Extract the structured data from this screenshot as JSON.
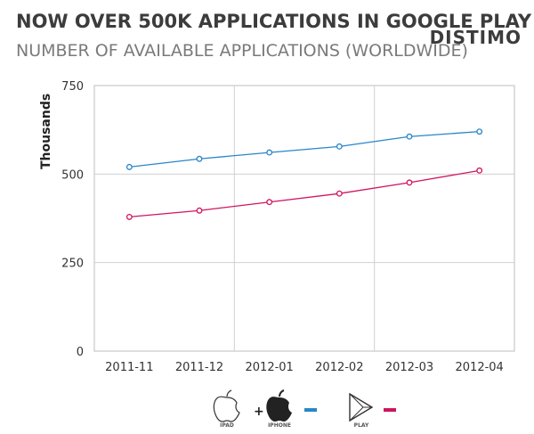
{
  "header": {
    "title": "NOW OVER 500K APPLICATIONS IN GOOGLE PLAY",
    "subtitle": "NUMBER OF AVAILABLE APPLICATIONS (WORLDWIDE)",
    "brand": "DISTIMO"
  },
  "chart_data": {
    "type": "line",
    "title": "NOW OVER 500K APPLICATIONS IN GOOGLE PLAY",
    "subtitle": "NUMBER OF AVAILABLE APPLICATIONS (WORLDWIDE)",
    "xlabel": "",
    "ylabel": "Thousands",
    "categories": [
      "2011-11",
      "2011-12",
      "2012-01",
      "2012-02",
      "2012-03",
      "2012-04"
    ],
    "ylim": [
      0,
      750
    ],
    "yticks": [
      "0",
      "250",
      "500",
      "750"
    ],
    "grid": true,
    "series": [
      {
        "name": "iPad + iPhone",
        "color": "#2a86c8",
        "values": [
          520,
          543,
          561,
          578,
          606,
          620
        ]
      },
      {
        "name": "Play",
        "color": "#d0155e",
        "values": [
          379,
          397,
          421,
          445,
          476,
          510
        ]
      }
    ]
  },
  "legend": {
    "items": [
      {
        "label": "IPAD",
        "icon": "apple-outline-icon"
      },
      {
        "label": "IPHONE",
        "icon": "apple-filled-icon"
      },
      {
        "label": "PLAY",
        "icon": "play-store-icon"
      }
    ],
    "plus": "+"
  }
}
